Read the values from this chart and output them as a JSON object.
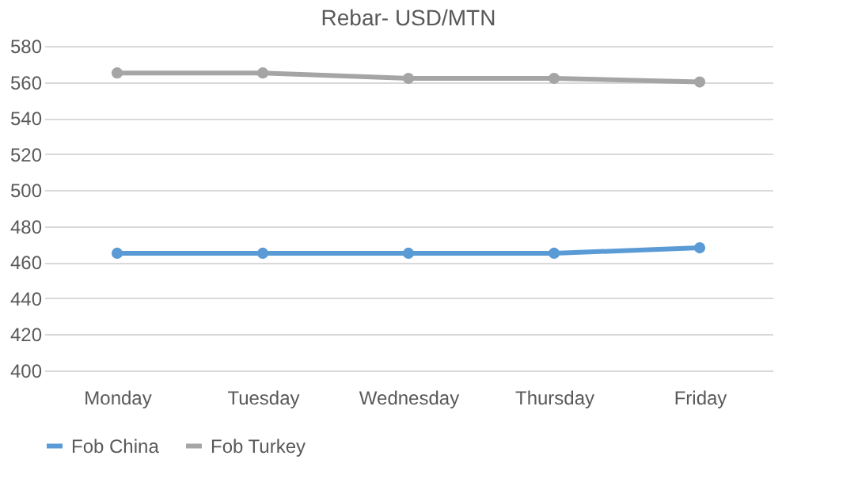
{
  "chart_data": {
    "type": "line",
    "title": "Rebar- USD/MTN",
    "categories": [
      "Monday",
      "Tuesday",
      "Wednesday",
      "Thursday",
      "Friday"
    ],
    "series": [
      {
        "name": "Fob China",
        "color": "#5b9bd5",
        "values": [
          465,
          465,
          465,
          465,
          468
        ]
      },
      {
        "name": "Fob Turkey",
        "color": "#a5a5a5",
        "values": [
          565,
          565,
          562,
          562,
          560
        ]
      }
    ],
    "ylim": [
      400,
      580
    ],
    "yticks": [
      400,
      420,
      440,
      460,
      480,
      500,
      520,
      540,
      560,
      580
    ],
    "grid": "y",
    "legend": "bottom",
    "marker": "circle",
    "line_style": "solid"
  }
}
